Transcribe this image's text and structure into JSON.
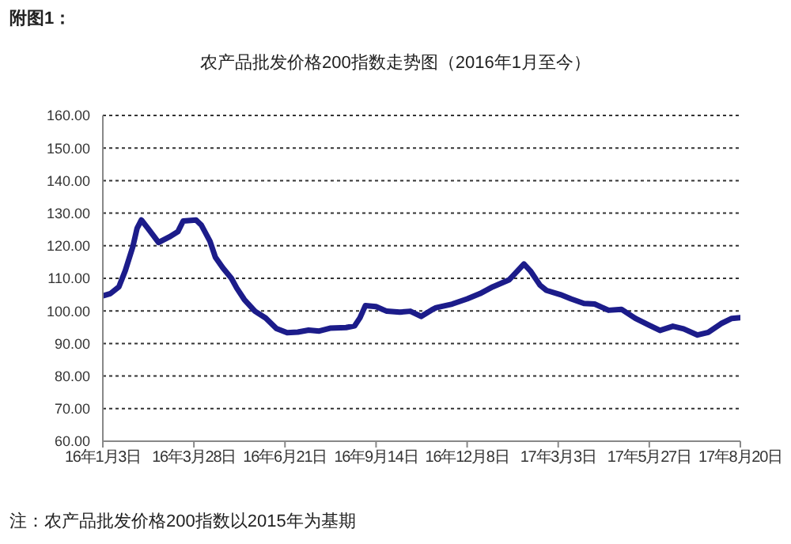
{
  "chart_data": {
    "type": "line",
    "title": "农产品批发价格200指数走势图（2016年1月至今）",
    "annotations": [
      "附图1：",
      "注：农产品批发价格200指数以2015年为基期"
    ],
    "x": [
      "2016-01-03",
      "2016-01-10",
      "2016-01-18",
      "2016-01-24",
      "2016-01-31",
      "2016-02-04",
      "2016-02-08",
      "2016-02-14",
      "2016-02-24",
      "2016-03-05",
      "2016-03-13",
      "2016-03-18",
      "2016-03-30",
      "2016-04-04",
      "2016-04-12",
      "2016-04-17",
      "2016-04-24",
      "2016-05-02",
      "2016-05-07",
      "2016-05-14",
      "2016-05-24",
      "2016-06-03",
      "2016-06-13",
      "2016-06-23",
      "2016-07-03",
      "2016-07-13",
      "2016-07-23",
      "2016-08-02",
      "2016-08-17",
      "2016-08-25",
      "2016-08-30",
      "2016-09-04",
      "2016-09-14",
      "2016-09-24",
      "2016-10-06",
      "2016-10-16",
      "2016-10-26",
      "2016-11-05",
      "2016-11-09",
      "2016-11-24",
      "2016-12-08",
      "2016-12-20",
      "2017-01-01",
      "2017-01-16",
      "2017-01-24",
      "2017-01-30",
      "2017-02-05",
      "2017-02-14",
      "2017-02-20",
      "2017-03-05",
      "2017-03-15",
      "2017-03-27",
      "2017-04-06",
      "2017-04-19",
      "2017-05-01",
      "2017-05-14",
      "2017-05-27",
      "2017-06-06",
      "2017-06-18",
      "2017-06-28",
      "2017-07-11",
      "2017-07-21",
      "2017-08-02",
      "2017-08-12",
      "2017-08-20"
    ],
    "series": [
      {
        "color": "#1c1c8a",
        "values": [
          104.6,
          105.3,
          107.4,
          112.4,
          119.7,
          125.4,
          127.9,
          125.4,
          121.0,
          122.7,
          124.3,
          127.6,
          127.9,
          126.3,
          121.4,
          116.5,
          113.2,
          110.0,
          107.0,
          103.5,
          99.9,
          97.8,
          94.6,
          93.3,
          93.5,
          94.1,
          93.8,
          94.7,
          94.9,
          95.4,
          97.9,
          101.6,
          101.3,
          99.9,
          99.6,
          99.9,
          98.3,
          100.3,
          101.0,
          102.1,
          103.7,
          105.3,
          107.4,
          109.5,
          112.3,
          114.4,
          112.3,
          107.9,
          106.3,
          105.0,
          103.7,
          102.3,
          102.1,
          100.2,
          100.5,
          97.7,
          95.6,
          94.0,
          95.3,
          94.5,
          92.6,
          93.4,
          96.1,
          97.7,
          97.9
        ]
      }
    ],
    "xlim": [
      "2016-01-03",
      "2017-08-20"
    ],
    "xticks": [
      {
        "value": "2016-01-03",
        "label": "16年1月3日"
      },
      {
        "value": "2016-03-28",
        "label": "16年3月28日"
      },
      {
        "value": "2016-06-21",
        "label": "16年6月21日"
      },
      {
        "value": "2016-09-14",
        "label": "16年9月14日"
      },
      {
        "value": "2016-12-08",
        "label": "16年12月8日"
      },
      {
        "value": "2017-03-03",
        "label": "17年3月3日"
      },
      {
        "value": "2017-05-27",
        "label": "17年5月27日"
      },
      {
        "value": "2017-08-20",
        "label": "17年8月20日"
      }
    ],
    "ylim": [
      60,
      160
    ],
    "yticks": [
      {
        "value": 60,
        "label": "60.00"
      },
      {
        "value": 70,
        "label": "70.00"
      },
      {
        "value": 80,
        "label": "80.00"
      },
      {
        "value": 90,
        "label": "90.00"
      },
      {
        "value": 100,
        "label": "100.00"
      },
      {
        "value": 110,
        "label": "110.00"
      },
      {
        "value": 120,
        "label": "120.00"
      },
      {
        "value": 130,
        "label": "130.00"
      },
      {
        "value": 140,
        "label": "140.00"
      },
      {
        "value": 150,
        "label": "150.00"
      },
      {
        "value": 160,
        "label": "160.00"
      }
    ],
    "grid": "y",
    "line_style": "solid"
  }
}
